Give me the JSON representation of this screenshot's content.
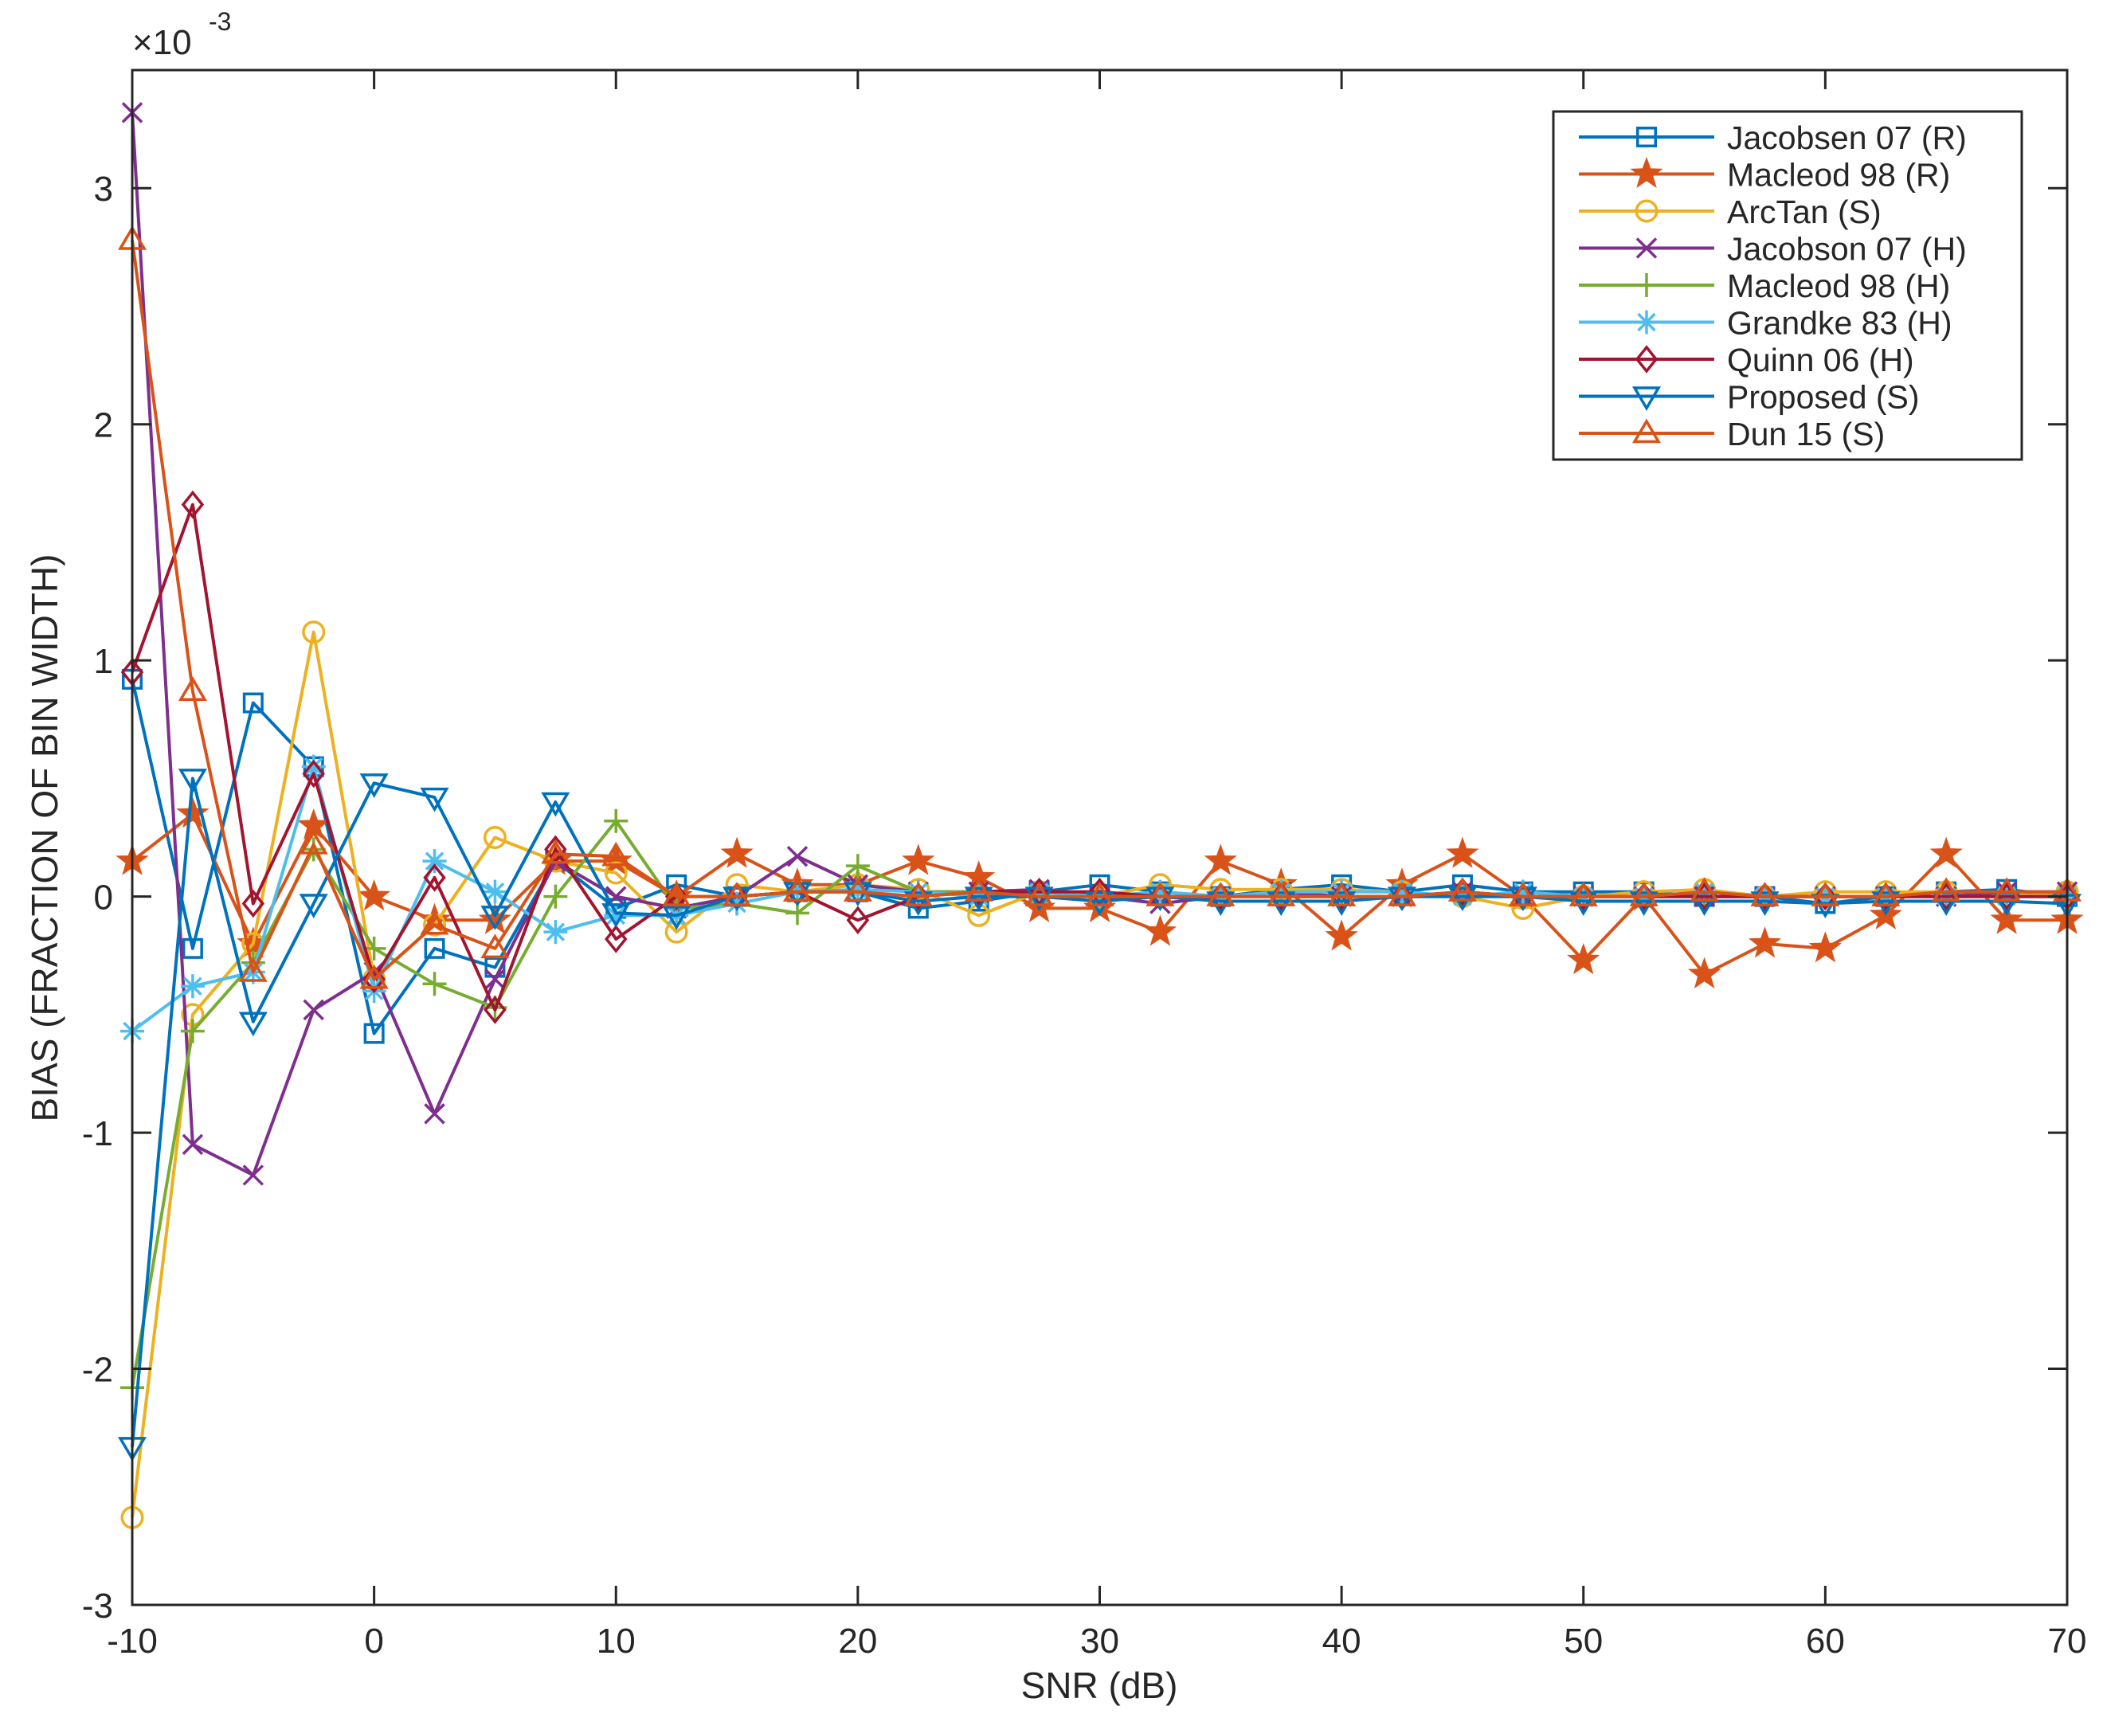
{
  "chart_data": {
    "type": "line",
    "title": "",
    "xlabel": "SNR (dB)",
    "ylabel": "BIAS (FRACTION OF BIN WIDTH)",
    "y_exponent_base": "×10",
    "y_exponent_power": "-3",
    "xlim": [
      -10,
      70
    ],
    "ylim": [
      -3,
      3.5
    ],
    "xticks": [
      -10,
      0,
      10,
      20,
      30,
      40,
      50,
      60,
      70
    ],
    "yticks": [
      -3,
      -2,
      -1,
      0,
      1,
      2,
      3
    ],
    "grid": false,
    "legend_position": "top-right",
    "x": [
      -10,
      -7.5,
      -5,
      -2.5,
      0,
      2.5,
      5,
      7.5,
      10,
      12.5,
      15,
      17.5,
      20,
      22.5,
      25,
      27.5,
      30,
      32.5,
      35,
      37.5,
      40,
      42.5,
      45,
      47.5,
      50,
      52.5,
      55,
      57.5,
      60,
      62.5,
      65,
      67.5,
      70
    ],
    "series": [
      {
        "name": "Jacobsen 07 (R)",
        "color": "#0072BD",
        "marker": "square",
        "values": [
          0.92,
          -0.22,
          0.82,
          0.55,
          -0.58,
          -0.22,
          -0.3,
          0.15,
          -0.05,
          0.05,
          0.0,
          0.02,
          0.02,
          -0.05,
          -0.02,
          0.02,
          0.05,
          0.02,
          0.0,
          0.03,
          0.05,
          0.02,
          0.05,
          0.02,
          0.02,
          0.02,
          0.0,
          0.0,
          -0.03,
          0.0,
          0.02,
          0.03,
          0.0
        ]
      },
      {
        "name": "Macleod 98 (R)",
        "color": "#D95319",
        "marker": "star",
        "values": [
          0.15,
          0.35,
          -0.2,
          0.3,
          0.0,
          -0.1,
          -0.1,
          0.15,
          0.15,
          0.0,
          0.18,
          0.05,
          0.05,
          0.15,
          0.08,
          -0.05,
          -0.05,
          -0.15,
          0.15,
          0.05,
          -0.17,
          0.05,
          0.18,
          0.0,
          -0.27,
          0.0,
          -0.33,
          -0.2,
          -0.22,
          -0.08,
          0.18,
          -0.1,
          -0.1
        ]
      },
      {
        "name": "ArcTan (S)",
        "color": "#EDB120",
        "marker": "circle",
        "values": [
          -2.63,
          -0.5,
          -0.2,
          1.12,
          -0.35,
          -0.12,
          0.25,
          0.15,
          0.1,
          -0.15,
          0.05,
          0.02,
          0.05,
          0.03,
          -0.08,
          0.02,
          0.0,
          0.05,
          0.03,
          0.03,
          0.03,
          0.02,
          0.0,
          -0.05,
          0.0,
          0.02,
          0.03,
          0.0,
          0.02,
          0.02,
          0.02,
          0.0,
          0.02
        ]
      },
      {
        "name": "Jacobson 07 (H)",
        "color": "#7E2F8E",
        "marker": "x",
        "values": [
          3.32,
          -1.05,
          -1.18,
          -0.48,
          -0.32,
          -0.92,
          -0.35,
          0.15,
          0.0,
          -0.05,
          0.0,
          0.17,
          0.05,
          0.02,
          0.02,
          0.03,
          0.0,
          -0.03,
          0.0,
          0.02,
          0.0,
          0.0,
          0.02,
          0.0,
          0.0,
          0.0,
          0.0,
          0.0,
          0.0,
          0.0,
          0.0,
          0.02,
          0.02
        ]
      },
      {
        "name": "Macleod 98 (H)",
        "color": "#77AC30",
        "marker": "plus",
        "values": [
          -2.08,
          -0.57,
          -0.28,
          0.2,
          -0.22,
          -0.37,
          -0.47,
          0.0,
          0.32,
          -0.05,
          -0.03,
          -0.07,
          0.13,
          0.02,
          0.02,
          0.0,
          0.0,
          0.0,
          0.0,
          0.0,
          0.0,
          0.0,
          0.0,
          0.0,
          0.0,
          0.0,
          0.0,
          0.0,
          0.0,
          0.0,
          0.0,
          0.0,
          0.0
        ]
      },
      {
        "name": "Grandke 83 (H)",
        "color": "#4DBEEE",
        "marker": "asterisk",
        "values": [
          -0.57,
          -0.38,
          -0.32,
          0.55,
          -0.4,
          0.15,
          0.02,
          -0.15,
          -0.08,
          -0.08,
          -0.03,
          0.02,
          0.03,
          0.02,
          0.0,
          0.02,
          0.0,
          0.02,
          0.0,
          0.02,
          0.02,
          0.02,
          0.0,
          0.02,
          0.0,
          0.0,
          0.02,
          0.0,
          0.0,
          0.0,
          0.0,
          0.0,
          0.0
        ]
      },
      {
        "name": "Quinn 06 (H)",
        "color": "#A2142F",
        "marker": "diamond",
        "values": [
          0.95,
          1.66,
          -0.03,
          0.52,
          -0.35,
          0.08,
          -0.48,
          0.2,
          -0.18,
          0.0,
          0.0,
          0.02,
          -0.1,
          0.0,
          0.02,
          0.02,
          0.02,
          0.0,
          0.0,
          0.0,
          0.0,
          0.0,
          0.02,
          0.0,
          0.0,
          0.0,
          0.0,
          0.0,
          0.0,
          0.0,
          0.0,
          0.0,
          0.0
        ]
      },
      {
        "name": "Proposed (S)",
        "color": "#0072BD",
        "marker": "triangle-down",
        "values": [
          -2.33,
          0.5,
          -0.53,
          -0.03,
          0.48,
          0.42,
          -0.08,
          0.4,
          -0.07,
          -0.08,
          0.0,
          0.02,
          0.02,
          -0.02,
          0.0,
          0.0,
          -0.02,
          0.0,
          -0.02,
          -0.02,
          -0.02,
          0.0,
          0.0,
          0.0,
          -0.02,
          -0.02,
          -0.02,
          -0.02,
          -0.03,
          -0.02,
          -0.02,
          -0.02,
          -0.03
        ]
      },
      {
        "name": "Dun 15 (S)",
        "color": "#D95319",
        "marker": "triangle-up",
        "values": [
          2.78,
          0.87,
          -0.32,
          0.22,
          -0.35,
          -0.12,
          -0.22,
          0.18,
          0.17,
          0.0,
          0.0,
          0.02,
          0.02,
          0.0,
          0.02,
          0.0,
          0.0,
          0.0,
          0.0,
          0.0,
          0.0,
          0.0,
          0.02,
          0.0,
          0.0,
          0.0,
          0.02,
          0.0,
          0.0,
          0.0,
          0.02,
          0.02,
          0.02
        ]
      }
    ]
  }
}
